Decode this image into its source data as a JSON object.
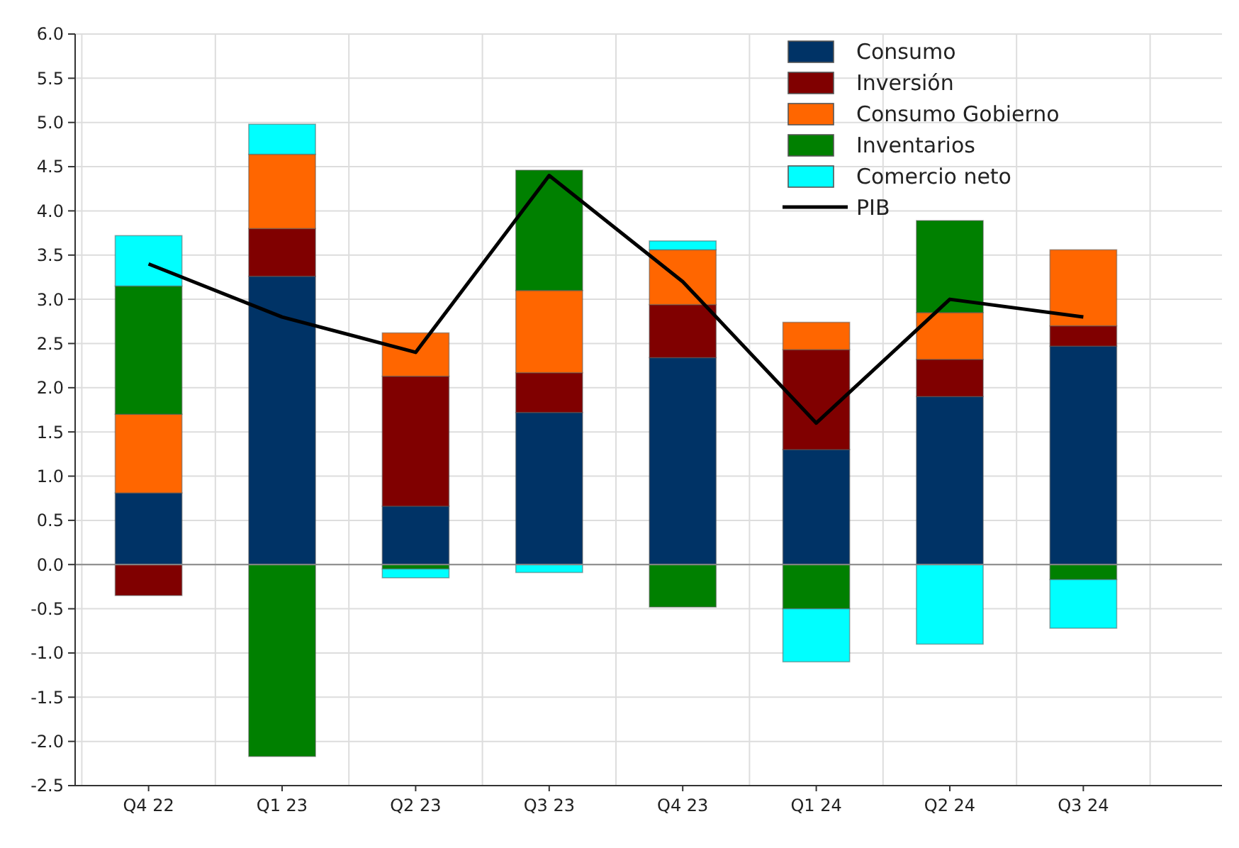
{
  "chart_data": {
    "type": "bar",
    "stacked": true,
    "categories": [
      "Q4 22",
      "Q1 23",
      "Q2 23",
      "Q3 23",
      "Q4 23",
      "Q1 24",
      "Q2 24",
      "Q3 24"
    ],
    "series": [
      {
        "name": "Consumo",
        "color": "#003366",
        "values": [
          0.81,
          3.26,
          0.66,
          1.72,
          2.34,
          1.3,
          1.9,
          2.47
        ]
      },
      {
        "name": "Inversión",
        "color": "#800000",
        "values": [
          -0.35,
          0.54,
          1.47,
          0.45,
          0.6,
          1.13,
          0.42,
          0.23
        ]
      },
      {
        "name": "Consumo Gobierno",
        "color": "#ff6600",
        "values": [
          0.89,
          0.84,
          0.49,
          0.93,
          0.62,
          0.31,
          0.53,
          0.86
        ]
      },
      {
        "name": "Inventarios",
        "color": "#008000",
        "values": [
          1.45,
          -2.17,
          -0.05,
          1.36,
          -0.48,
          -0.5,
          1.04,
          -0.17
        ]
      },
      {
        "name": "Comercio neto",
        "color": "#00ffff",
        "values": [
          0.57,
          0.34,
          -0.1,
          -0.09,
          0.1,
          -0.6,
          -0.9,
          -0.55
        ]
      },
      {
        "name": "PIB",
        "type": "line",
        "color": "#000000",
        "values": [
          3.4,
          2.8,
          2.4,
          4.4,
          3.2,
          1.6,
          3.0,
          2.8
        ]
      }
    ],
    "ylim": [
      -2.5,
      6.0
    ],
    "yticks": [
      {
        "value": -2.5,
        "label": "-2.5"
      },
      {
        "value": -2,
        "label": "-2.0"
      },
      {
        "value": -1.5,
        "label": "-1.5"
      },
      {
        "value": -1,
        "label": "-1.0"
      },
      {
        "value": -0.5,
        "label": "-0.5"
      },
      {
        "value": 0,
        "label": "0.0"
      },
      {
        "value": 0.5,
        "label": "0.5"
      },
      {
        "value": 1,
        "label": "1.0"
      },
      {
        "value": 1.5,
        "label": "1.5"
      },
      {
        "value": 2,
        "label": "2.0"
      },
      {
        "value": 2.5,
        "label": "2.5"
      },
      {
        "value": 3,
        "label": "3.0"
      },
      {
        "value": 3.5,
        "label": "3.5"
      },
      {
        "value": 4,
        "label": "4.0"
      },
      {
        "value": 4.5,
        "label": "4.5"
      },
      {
        "value": 5,
        "label": "5.0"
      },
      {
        "value": 5.5,
        "label": "5.5"
      },
      {
        "value": 6,
        "label": "6.0"
      }
    ],
    "grid": true,
    "legend": "top right",
    "line_style": "solid",
    "marker": "none"
  }
}
